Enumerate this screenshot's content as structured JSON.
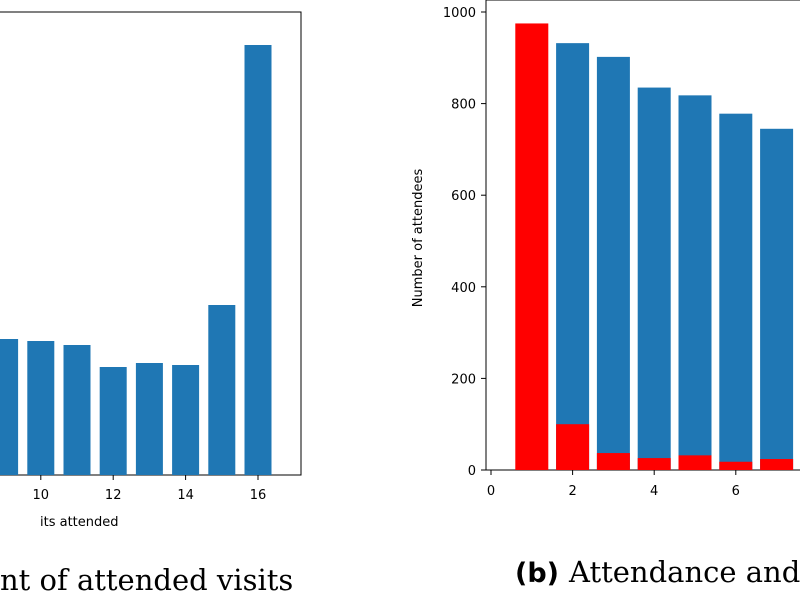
{
  "colors": {
    "blue": "#1f77b4",
    "red": "#ff0000"
  },
  "chart_data": [
    {
      "type": "bar",
      "x": [
        9,
        10,
        11,
        12,
        13,
        14,
        15,
        16
      ],
      "values": [
        340,
        335,
        325,
        270,
        280,
        275,
        425,
        1075
      ],
      "xticks": [
        "10",
        "12",
        "14",
        "16"
      ],
      "xlabel": "its attended",
      "caption": "nt of attended visits",
      "grid": false
    },
    {
      "type": "bar",
      "x": [
        1,
        2,
        3,
        4,
        5,
        6,
        7
      ],
      "series": [
        {
          "values": [
            0,
            932,
            902,
            835,
            818,
            778,
            745
          ],
          "color": "#1f77b4"
        },
        {
          "values": [
            975,
            100,
            37,
            26,
            32,
            18,
            24
          ],
          "color": "#ff0000"
        }
      ],
      "xticks": [
        "0",
        "2",
        "4",
        "6"
      ],
      "yticks": [
        "0",
        "200",
        "400",
        "600",
        "800",
        "1000"
      ],
      "ylabel": "Number of attendees",
      "ylim": [
        0,
        1000
      ],
      "caption_prefix": "(b)",
      "caption": "Attendance and e",
      "grid": false
    }
  ]
}
